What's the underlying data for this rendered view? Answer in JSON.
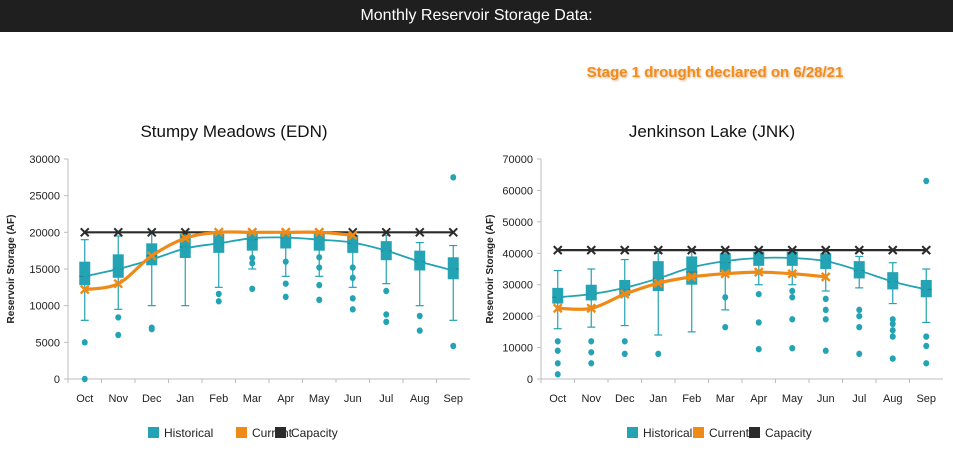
{
  "header": {
    "title": "Monthly Reservoir Storage Data:"
  },
  "annotation": {
    "text": "Stage 1 drought declared  on 6/28/21"
  },
  "colors": {
    "historical": "#23a3b3",
    "current": "#f08a17",
    "capacity": "#2b2b2b",
    "header_bg": "#1f1f1f",
    "annotation": "#f28c1a"
  },
  "chart_data": [
    {
      "type": "box+line",
      "title": "Stumpy Meadows (EDN)",
      "ylabel": "Reservoir Storage (AF)",
      "xlabel": "",
      "ylim": [
        0,
        30000
      ],
      "yticks": [
        0,
        5000,
        10000,
        15000,
        20000,
        25000,
        30000
      ],
      "ytick_labels": [
        "0",
        "5000",
        "10000",
        "15000",
        "20000",
        "25000",
        "30000"
      ],
      "categories": [
        "Oct",
        "Nov",
        "Dec",
        "Jan",
        "Feb",
        "Mar",
        "Apr",
        "May",
        "Jun",
        "Jul",
        "Aug",
        "Sep"
      ],
      "legend": [
        "Historical",
        "Current",
        "Capacity"
      ],
      "historical_box": [
        {
          "min": 8000,
          "q1": 12800,
          "median": 14000,
          "q3": 16000,
          "max": 19000,
          "outliers": [
            5000,
            0
          ]
        },
        {
          "min": 9500,
          "q1": 13800,
          "median": 15000,
          "q3": 17000,
          "max": 19500,
          "outliers": [
            8400,
            6000
          ]
        },
        {
          "min": 10000,
          "q1": 15500,
          "median": 16800,
          "q3": 18500,
          "max": 20000,
          "outliers": [
            7000,
            6800
          ]
        },
        {
          "min": 10000,
          "q1": 16500,
          "median": 18000,
          "q3": 19800,
          "max": 20000,
          "outliers": []
        },
        {
          "min": 12500,
          "q1": 17200,
          "median": 18500,
          "q3": 19800,
          "max": 20000,
          "outliers": [
            11600,
            10600
          ]
        },
        {
          "min": 15000,
          "q1": 17500,
          "median": 19000,
          "q3": 19900,
          "max": 20000,
          "outliers": [
            16500,
            15800,
            12300
          ]
        },
        {
          "min": 14000,
          "q1": 17800,
          "median": 19200,
          "q3": 20000,
          "max": 20000,
          "outliers": [
            16000,
            13000,
            11200
          ]
        },
        {
          "min": 14000,
          "q1": 17500,
          "median": 19000,
          "q3": 20000,
          "max": 20000,
          "outliers": [
            16600,
            15200,
            12800,
            10800
          ]
        },
        {
          "min": 12500,
          "q1": 17200,
          "median": 18500,
          "q3": 19600,
          "max": 20000,
          "outliers": [
            15200,
            13800,
            11000,
            9500
          ]
        },
        {
          "min": 13000,
          "q1": 16200,
          "median": 17500,
          "q3": 18800,
          "max": 19600,
          "outliers": [
            12000,
            8800,
            7800
          ]
        },
        {
          "min": 10000,
          "q1": 14800,
          "median": 16000,
          "q3": 17500,
          "max": 18600,
          "outliers": [
            8600,
            6600
          ]
        },
        {
          "min": 8000,
          "q1": 13600,
          "median": 15000,
          "q3": 16600,
          "max": 18200,
          "outliers": [
            27500,
            4500
          ]
        }
      ],
      "series": [
        {
          "name": "Historical",
          "values": [
            14000,
            15000,
            16300,
            17800,
            18500,
            19200,
            19300,
            19000,
            18600,
            17500,
            16000,
            14800
          ]
        },
        {
          "name": "Current",
          "values": [
            12200,
            13000,
            16800,
            19200,
            20000,
            20000,
            20000,
            20000,
            19600,
            null,
            null,
            null
          ]
        },
        {
          "name": "Capacity",
          "values": [
            20000,
            20000,
            20000,
            20000,
            20000,
            20000,
            20000,
            20000,
            20000,
            20000,
            20000,
            20000
          ]
        }
      ]
    },
    {
      "type": "box+line",
      "title": "Jenkinson Lake (JNK)",
      "ylabel": "Reservoir Storage (AF)",
      "xlabel": "",
      "ylim": [
        0,
        70000
      ],
      "yticks": [
        0,
        10000,
        20000,
        30000,
        40000,
        50000,
        60000,
        70000
      ],
      "ytick_labels": [
        "0",
        "10000",
        "20000",
        "30000",
        "40000",
        "50000",
        "60000",
        "70000"
      ],
      "categories": [
        "Oct",
        "Nov",
        "Dec",
        "Jan",
        "Feb",
        "Mar",
        "Apr",
        "May",
        "Jun",
        "Jul",
        "Aug",
        "Sep"
      ],
      "legend": [
        "Historical",
        "Current",
        "Capacity"
      ],
      "historical_box": [
        {
          "min": 16000,
          "q1": 24000,
          "median": 26000,
          "q3": 29000,
          "max": 34500,
          "outliers": [
            12000,
            9000,
            5000,
            1500
          ]
        },
        {
          "min": 16500,
          "q1": 25000,
          "median": 27000,
          "q3": 30000,
          "max": 35000,
          "outliers": [
            12000,
            8500,
            5000
          ]
        },
        {
          "min": 17000,
          "q1": 26500,
          "median": 28500,
          "q3": 31500,
          "max": 38000,
          "outliers": [
            12000,
            8000
          ]
        },
        {
          "min": 14000,
          "q1": 28000,
          "median": 32000,
          "q3": 37500,
          "max": 40000,
          "outliers": [
            8000
          ]
        },
        {
          "min": 15000,
          "q1": 30000,
          "median": 34000,
          "q3": 39000,
          "max": 41000,
          "outliers": []
        },
        {
          "min": 22000,
          "q1": 34000,
          "median": 37000,
          "q3": 40000,
          "max": 41000,
          "outliers": [
            26000,
            16500
          ]
        },
        {
          "min": 30000,
          "q1": 36000,
          "median": 38500,
          "q3": 40500,
          "max": 41000,
          "outliers": [
            27000,
            18000,
            9500
          ]
        },
        {
          "min": 30000,
          "q1": 36000,
          "median": 38500,
          "q3": 40500,
          "max": 41000,
          "outliers": [
            28000,
            26000,
            19000,
            9800
          ]
        },
        {
          "min": 28000,
          "q1": 35000,
          "median": 37500,
          "q3": 40000,
          "max": 41000,
          "outliers": [
            25500,
            22000,
            19000,
            9000
          ]
        },
        {
          "min": 29000,
          "q1": 32000,
          "median": 34500,
          "q3": 37500,
          "max": 39000,
          "outliers": [
            22000,
            20000,
            16500,
            8000
          ]
        },
        {
          "min": 24000,
          "q1": 28500,
          "median": 31000,
          "q3": 34000,
          "max": 37000,
          "outliers": [
            19000,
            17500,
            15500,
            13500,
            6500
          ]
        },
        {
          "min": 18000,
          "q1": 26000,
          "median": 28500,
          "q3": 31500,
          "max": 35000,
          "outliers": [
            63000,
            13500,
            10500,
            5000
          ]
        }
      ],
      "series": [
        {
          "name": "Historical",
          "values": [
            26000,
            27000,
            29000,
            32000,
            35500,
            37500,
            38500,
            38500,
            37500,
            34500,
            31000,
            28500
          ]
        },
        {
          "name": "Current",
          "values": [
            22500,
            22500,
            27000,
            30500,
            32500,
            33500,
            34000,
            33500,
            32500,
            null,
            null,
            null
          ]
        },
        {
          "name": "Capacity",
          "values": [
            41000,
            41000,
            41000,
            41000,
            41000,
            41000,
            41000,
            41000,
            41000,
            41000,
            41000,
            41000
          ]
        }
      ]
    }
  ]
}
